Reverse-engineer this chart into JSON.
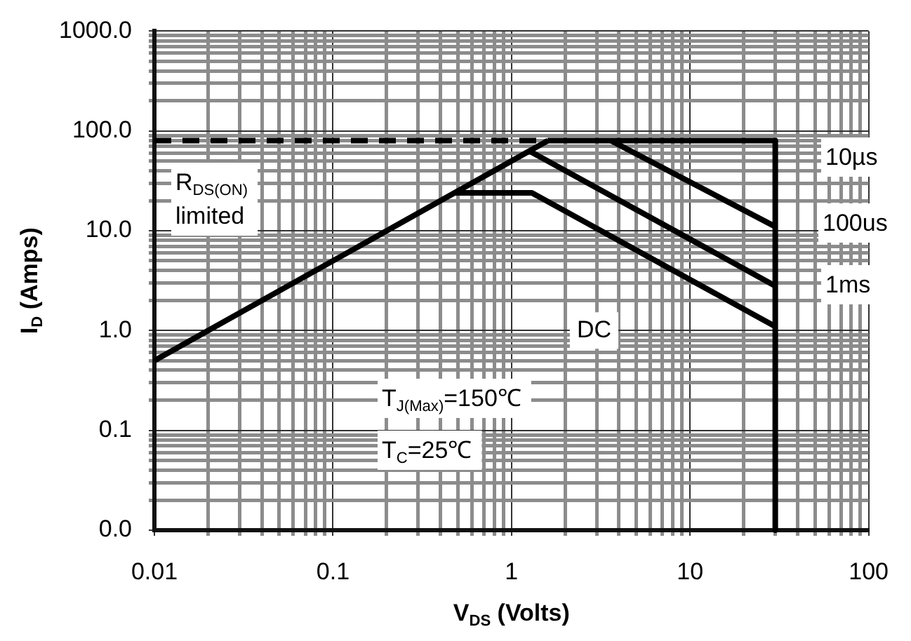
{
  "chart_data": {
    "type": "line",
    "xlabel": "V$_{DS}$ (Volts)",
    "ylabel": "I$_{D}$ (Amps)",
    "log": "xy",
    "grid": true,
    "legend": false,
    "marker": "none",
    "xlim": [
      0.01,
      100
    ],
    "xticks": [
      0.01,
      {
        "value": 0.02,
        "label": null
      },
      {
        "value": 0.03,
        "label": null
      },
      {
        "value": 0.04,
        "label": null
      },
      {
        "value": 0.05,
        "label": null
      },
      {
        "value": 0.06,
        "label": null
      },
      {
        "value": 0.07,
        "label": null
      },
      {
        "value": 0.08,
        "label": null
      },
      {
        "value": 0.09,
        "label": null
      },
      0.1,
      {
        "value": 0.2,
        "label": null
      },
      {
        "value": 0.3,
        "label": null
      },
      {
        "value": 0.4,
        "label": null
      },
      {
        "value": 0.5,
        "label": null
      },
      {
        "value": 0.6,
        "label": null
      },
      {
        "value": 0.7,
        "label": null
      },
      {
        "value": 0.8,
        "label": null
      },
      {
        "value": 0.9,
        "label": null
      },
      1,
      {
        "value": 2,
        "label": null
      },
      {
        "value": 3,
        "label": null
      },
      {
        "value": 4,
        "label": null
      },
      {
        "value": 5,
        "label": null
      },
      {
        "value": 6,
        "label": null
      },
      {
        "value": 7,
        "label": null
      },
      {
        "value": 8,
        "label": null
      },
      {
        "value": 9,
        "label": null
      },
      10,
      {
        "value": 20,
        "label": null
      },
      {
        "value": 30,
        "label": null
      },
      {
        "value": 40,
        "label": null
      },
      {
        "value": 50,
        "label": null
      },
      {
        "value": 60,
        "label": null
      },
      {
        "value": 70,
        "label": null
      },
      {
        "value": 80,
        "label": null
      },
      {
        "value": 90,
        "label": null
      },
      100
    ],
    "ylim": [
      0.01,
      1000
    ],
    "yticks": [
      {
        "value": 0.01,
        "label": "0.0"
      },
      {
        "value": 0.02,
        "label": null
      },
      {
        "value": 0.03,
        "label": null
      },
      {
        "value": 0.04,
        "label": null
      },
      {
        "value": 0.05,
        "label": null
      },
      {
        "value": 0.06,
        "label": null
      },
      {
        "value": 0.07,
        "label": null
      },
      {
        "value": 0.08,
        "label": null
      },
      {
        "value": 0.09,
        "label": null
      },
      0.1,
      {
        "value": 0.2,
        "label": null
      },
      {
        "value": 0.3,
        "label": null
      },
      {
        "value": 0.4,
        "label": null
      },
      {
        "value": 0.5,
        "label": null
      },
      {
        "value": 0.6,
        "label": null
      },
      {
        "value": 0.7,
        "label": null
      },
      {
        "value": 0.8,
        "label": null
      },
      {
        "value": 0.9,
        "label": null
      },
      {
        "value": 1,
        "label": "1.0"
      },
      {
        "value": 2,
        "label": null
      },
      {
        "value": 3,
        "label": null
      },
      {
        "value": 4,
        "label": null
      },
      {
        "value": 5,
        "label": null
      },
      {
        "value": 6,
        "label": null
      },
      {
        "value": 7,
        "label": null
      },
      {
        "value": 8,
        "label": null
      },
      {
        "value": 9,
        "label": null
      },
      {
        "value": 10,
        "label": "10.0"
      },
      {
        "value": 20,
        "label": null
      },
      {
        "value": 30,
        "label": null
      },
      {
        "value": 40,
        "label": null
      },
      {
        "value": 50,
        "label": null
      },
      {
        "value": 60,
        "label": null
      },
      {
        "value": 70,
        "label": null
      },
      {
        "value": 80,
        "label": null
      },
      {
        "value": 90,
        "label": null
      },
      {
        "value": 100,
        "label": "100.0"
      },
      {
        "value": 200,
        "label": null
      },
      {
        "value": 300,
        "label": null
      },
      {
        "value": 400,
        "label": null
      },
      {
        "value": 500,
        "label": null
      },
      {
        "value": 600,
        "label": null
      },
      {
        "value": 700,
        "label": null
      },
      {
        "value": 800,
        "label": null
      },
      {
        "value": 900,
        "label": null
      },
      {
        "value": 1000,
        "label": "1000.0"
      }
    ],
    "series": [
      {
        "color": "#000000",
        "x": [
          0.01,
          1.6
        ],
        "values": [
          0.5,
          80
        ]
      },
      {
        "color": "#000000",
        "line_style": "dashed",
        "x": [
          0.01,
          1.6
        ],
        "values": [
          80,
          80
        ]
      },
      {
        "color": "#000000",
        "x": [
          1.6,
          30,
          30
        ],
        "values": [
          80,
          80,
          0.01
        ]
      },
      {
        "color": "#000000",
        "x": [
          3.6,
          30
        ],
        "values": [
          80,
          11
        ]
      },
      {
        "color": "#000000",
        "x": [
          1.26,
          30
        ],
        "values": [
          63,
          2.8
        ]
      },
      {
        "color": "#000000",
        "x": [
          0.48,
          1.3,
          30
        ],
        "values": [
          24,
          24,
          1.1
        ]
      }
    ],
    "annotations": [
      "10µs",
      "100us",
      "1ms",
      {
        "text": "DC",
        "x": 2.9,
        "y": 1.0
      },
      "R$_{DS(ON)}$ limited",
      "T$_{J(Max)}$=150℃",
      "T$_{C}$=25℃"
    ]
  }
}
